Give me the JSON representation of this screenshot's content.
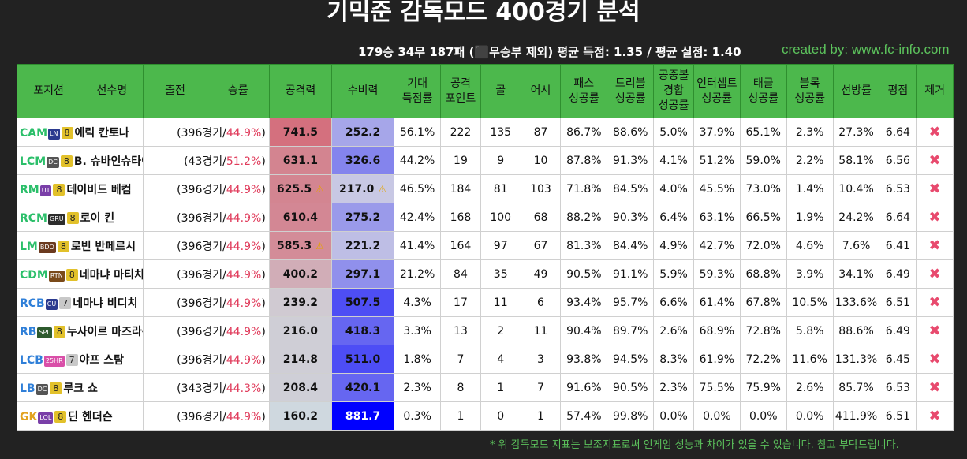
{
  "title": "기믹준 감독모드 400경기 분석",
  "summary": "179승 34무 187패   (⬛무승부 제외)   평균 득점: 1.35 / 평균 실점: 1.40",
  "created_by": "created by: www.fc-info.com",
  "headers": [
    "포지션",
    "선수명",
    "출전",
    "승률",
    "공격력",
    "수비력",
    "기대\n득점률",
    "공격\n포인트",
    "골",
    "어시",
    "패스\n성공률",
    "드리블\n성공률",
    "공중볼\n경합\n성공률",
    "인터셉트\n성공률",
    "태클\n성공률",
    "블록\n성공률",
    "선방률",
    "평점",
    "제거"
  ],
  "rows": [
    {
      "pos": "CAM",
      "pos_color": "#2bbf6a",
      "badge": "LN",
      "badge_color": "#2b3a8f",
      "grade": "8",
      "grade_color": "#e2c12b",
      "name": "에릭 칸토나",
      "games": "396",
      "rate": "44.9%",
      "atk": "741.5",
      "def": "252.2",
      "atk_warn": "",
      "def_warn": "",
      "xg": "56.1%",
      "ap": "222",
      "goal": "135",
      "assist": "87",
      "pass": "86.7%",
      "drib": "88.6%",
      "aerial": "5.0%",
      "intercept": "37.9%",
      "tackle": "65.1%",
      "block": "2.3%",
      "save": "27.3%",
      "rating": "6.64"
    },
    {
      "pos": "LCM",
      "pos_color": "#2bbf6a",
      "badge": "DC",
      "badge_color": "#555555",
      "grade": "8",
      "grade_color": "#e2c12b",
      "name": "B. 슈바인슈타이거",
      "games": "43",
      "rate": "51.2%",
      "atk": "631.1",
      "def": "326.6",
      "atk_warn": "",
      "def_warn": "",
      "xg": "44.2%",
      "ap": "19",
      "goal": "9",
      "assist": "10",
      "pass": "87.8%",
      "drib": "91.3%",
      "aerial": "4.1%",
      "intercept": "51.2%",
      "tackle": "59.0%",
      "block": "2.2%",
      "save": "58.1%",
      "rating": "6.56"
    },
    {
      "pos": "RM",
      "pos_color": "#2bbf6a",
      "badge": "UT",
      "badge_color": "#7a3fa8",
      "grade": "8",
      "grade_color": "#e2c12b",
      "name": "데이비드 베컴",
      "games": "396",
      "rate": "44.9%",
      "atk": "625.5",
      "def": "217.0",
      "atk_warn": "⚠",
      "def_warn": "⚠",
      "xg": "46.5%",
      "ap": "184",
      "goal": "81",
      "assist": "103",
      "pass": "71.8%",
      "drib": "84.5%",
      "aerial": "4.0%",
      "intercept": "45.5%",
      "tackle": "73.0%",
      "block": "1.4%",
      "save": "10.4%",
      "rating": "6.53"
    },
    {
      "pos": "RCM",
      "pos_color": "#2bbf6a",
      "badge": "GRU",
      "badge_color": "#2d2d2d",
      "grade": "8",
      "grade_color": "#e2c12b",
      "name": "로이 킨",
      "games": "396",
      "rate": "44.9%",
      "atk": "610.4",
      "def": "275.2",
      "atk_warn": "",
      "def_warn": "",
      "xg": "42.4%",
      "ap": "168",
      "goal": "100",
      "assist": "68",
      "pass": "88.2%",
      "drib": "90.3%",
      "aerial": "6.4%",
      "intercept": "63.1%",
      "tackle": "66.5%",
      "block": "1.9%",
      "save": "24.2%",
      "rating": "6.64"
    },
    {
      "pos": "LM",
      "pos_color": "#2bbf6a",
      "badge": "BDO",
      "badge_color": "#6b3a1f",
      "grade": "8",
      "grade_color": "#e2c12b",
      "name": "로빈 반페르시",
      "games": "396",
      "rate": "44.9%",
      "atk": "585.3",
      "def": "221.2",
      "atk_warn": "⚠",
      "def_warn": "",
      "xg": "41.4%",
      "ap": "164",
      "goal": "97",
      "assist": "67",
      "pass": "81.3%",
      "drib": "84.4%",
      "aerial": "4.9%",
      "intercept": "42.7%",
      "tackle": "72.0%",
      "block": "4.6%",
      "save": "7.6%",
      "rating": "6.41"
    },
    {
      "pos": "CDM",
      "pos_color": "#2bbf6a",
      "badge": "RTN",
      "badge_color": "#7a4a1a",
      "grade": "8",
      "grade_color": "#e2c12b",
      "name": "네마냐 마티치",
      "games": "396",
      "rate": "44.9%",
      "atk": "400.2",
      "def": "297.1",
      "atk_warn": "",
      "def_warn": "",
      "xg": "21.2%",
      "ap": "84",
      "goal": "35",
      "assist": "49",
      "pass": "90.5%",
      "drib": "91.1%",
      "aerial": "5.9%",
      "intercept": "59.3%",
      "tackle": "68.8%",
      "block": "3.9%",
      "save": "34.1%",
      "rating": "6.49"
    },
    {
      "pos": "RCB",
      "pos_color": "#2f7fd8",
      "badge": "CU",
      "badge_color": "#2b3a8f",
      "grade": "7",
      "grade_color": "#c8c8c8",
      "name": "네마냐 비디치",
      "games": "396",
      "rate": "44.9%",
      "atk": "239.2",
      "def": "507.5",
      "atk_warn": "",
      "def_warn": "",
      "xg": "4.3%",
      "ap": "17",
      "goal": "11",
      "assist": "6",
      "pass": "93.4%",
      "drib": "95.7%",
      "aerial": "6.6%",
      "intercept": "61.4%",
      "tackle": "67.8%",
      "block": "10.5%",
      "save": "133.6%",
      "rating": "6.51"
    },
    {
      "pos": "RB",
      "pos_color": "#2f7fd8",
      "badge": "SPL",
      "badge_color": "#2d5a2d",
      "grade": "8",
      "grade_color": "#e2c12b",
      "name": "누사이르 마즈라위",
      "games": "396",
      "rate": "44.9%",
      "atk": "216.0",
      "def": "418.3",
      "atk_warn": "",
      "def_warn": "",
      "xg": "3.3%",
      "ap": "13",
      "goal": "2",
      "assist": "11",
      "pass": "90.4%",
      "drib": "89.7%",
      "aerial": "2.6%",
      "intercept": "68.9%",
      "tackle": "72.8%",
      "block": "5.8%",
      "save": "88.6%",
      "rating": "6.49"
    },
    {
      "pos": "LCB",
      "pos_color": "#2f7fd8",
      "badge": "25HR",
      "badge_color": "#d94fa8",
      "grade": "7",
      "grade_color": "#c8c8c8",
      "name": "야프 스탐",
      "games": "396",
      "rate": "44.9%",
      "atk": "214.8",
      "def": "511.0",
      "atk_warn": "",
      "def_warn": "",
      "xg": "1.8%",
      "ap": "7",
      "goal": "4",
      "assist": "3",
      "pass": "93.8%",
      "drib": "94.5%",
      "aerial": "8.3%",
      "intercept": "61.9%",
      "tackle": "72.2%",
      "block": "11.6%",
      "save": "131.3%",
      "rating": "6.45"
    },
    {
      "pos": "LB",
      "pos_color": "#2f7fd8",
      "badge": "DC",
      "badge_color": "#555555",
      "grade": "8",
      "grade_color": "#e2c12b",
      "name": "루크 쇼",
      "games": "343",
      "rate": "44.3%",
      "atk": "208.4",
      "def": "420.1",
      "atk_warn": "",
      "def_warn": "",
      "xg": "2.3%",
      "ap": "8",
      "goal": "1",
      "assist": "7",
      "pass": "91.6%",
      "drib": "90.5%",
      "aerial": "2.3%",
      "intercept": "75.5%",
      "tackle": "75.9%",
      "block": "2.6%",
      "save": "85.7%",
      "rating": "6.53"
    },
    {
      "pos": "GK",
      "pos_color": "#e2a21f",
      "badge": "LOL",
      "badge_color": "#7a3fa8",
      "grade": "8",
      "grade_color": "#e2c12b",
      "name": "딘 헨더슨",
      "games": "396",
      "rate": "44.9%",
      "atk": "160.2",
      "def": "881.7",
      "atk_warn": "",
      "def_warn": "",
      "xg": "0.3%",
      "ap": "1",
      "goal": "0",
      "assist": "1",
      "pass": "57.4%",
      "drib": "99.8%",
      "aerial": "0.0%",
      "intercept": "0.0%",
      "tackle": "0.0%",
      "block": "0.0%",
      "save": "411.9%",
      "rating": "6.51"
    }
  ],
  "games_suffix": "경기/",
  "delete_icon": "✖",
  "footnote": "* 위 감독모드 지표는 보조지표로써 인게임 성능과 차이가 있을 수 있습니다. 참고 부탁드립니다.",
  "colors": {
    "header_bg": "#4cb84c",
    "bg": "#222222",
    "accent": "#5cc25c",
    "atk_max": "#d4707e",
    "def_max": "#0000ff"
  }
}
